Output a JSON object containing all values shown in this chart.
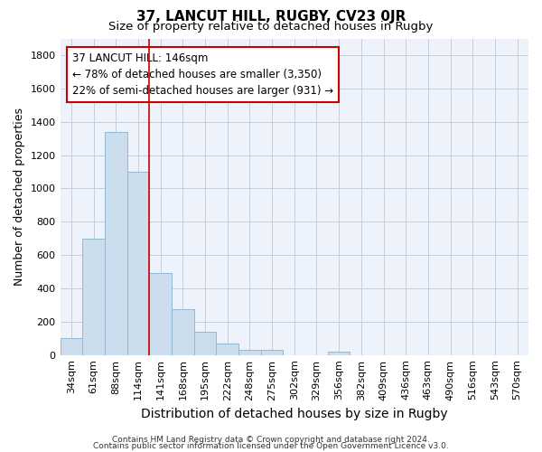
{
  "title": "37, LANCUT HILL, RUGBY, CV23 0JR",
  "subtitle": "Size of property relative to detached houses in Rugby",
  "xlabel": "Distribution of detached houses by size in Rugby",
  "ylabel": "Number of detached properties",
  "categories": [
    "34sqm",
    "61sqm",
    "88sqm",
    "114sqm",
    "141sqm",
    "168sqm",
    "195sqm",
    "222sqm",
    "248sqm",
    "275sqm",
    "302sqm",
    "329sqm",
    "356sqm",
    "382sqm",
    "409sqm",
    "436sqm",
    "463sqm",
    "490sqm",
    "516sqm",
    "543sqm",
    "570sqm"
  ],
  "values": [
    100,
    700,
    1340,
    1100,
    490,
    275,
    140,
    70,
    30,
    30,
    0,
    0,
    20,
    0,
    0,
    0,
    0,
    0,
    0,
    0,
    0
  ],
  "bar_color": "#ccdded",
  "bar_edge_color": "#92b8d4",
  "vline_color": "#cc0000",
  "vline_pos": 3.5,
  "ylim": [
    0,
    1900
  ],
  "yticks": [
    0,
    200,
    400,
    600,
    800,
    1000,
    1200,
    1400,
    1600,
    1800
  ],
  "annotation_line1": "37 LANCUT HILL: 146sqm",
  "annotation_line2": "← 78% of detached houses are smaller (3,350)",
  "annotation_line3": "22% of semi-detached houses are larger (931) →",
  "grid_color": "#c0c8dc",
  "bg_color": "#edf2fb",
  "footer_line1": "Contains HM Land Registry data © Crown copyright and database right 2024.",
  "footer_line2": "Contains public sector information licensed under the Open Government Licence v3.0.",
  "title_fontsize": 11,
  "subtitle_fontsize": 9.5,
  "ylabel_fontsize": 9,
  "xlabel_fontsize": 10,
  "tick_fontsize": 8,
  "annotation_fontsize": 8.5,
  "footer_fontsize": 6.5
}
